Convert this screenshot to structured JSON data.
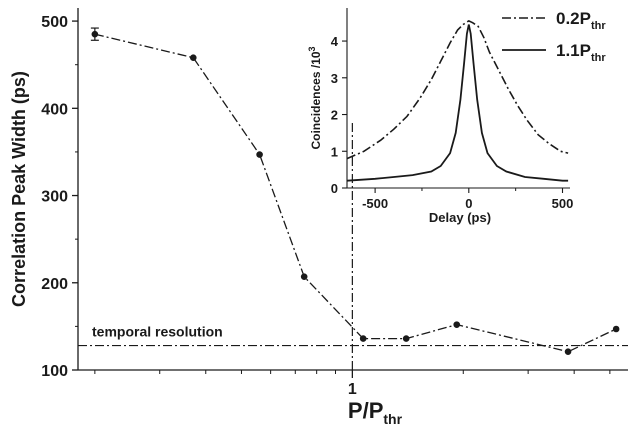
{
  "chart_data": [
    {
      "type": "line",
      "xlabel_main": "P/P",
      "xlabel_sub": "thr",
      "ylabel": "Correlation Peak  Width (ps)",
      "xscale": "log",
      "xlim": [
        0.18,
        5.6
      ],
      "ylim": [
        100,
        515
      ],
      "yticks": [
        100,
        200,
        300,
        400,
        500
      ],
      "xtick_labels": [
        "1"
      ],
      "grid": false,
      "series": [
        {
          "style": "dash-dot",
          "markers": "circle",
          "x": [
            0.2,
            0.37,
            0.56,
            0.74,
            1.07,
            1.4,
            1.92,
            3.85,
            5.2
          ],
          "y": [
            485,
            458,
            347,
            207,
            136,
            136,
            152,
            121,
            147
          ],
          "error": [
            7,
            0,
            0,
            0,
            0,
            0,
            0,
            0,
            0
          ]
        }
      ],
      "reference_lines": {
        "horizontal": {
          "y": 128,
          "label": "temporal resolution"
        },
        "vertical": {
          "x": 1
        }
      }
    },
    {
      "type": "line",
      "xlabel": "Delay (ps)",
      "ylabel": "Coincidences /10",
      "ylabel_superscript": "3",
      "xlim": [
        -650,
        540
      ],
      "ylim": [
        0,
        4.9
      ],
      "xticks": [
        -500,
        0,
        500
      ],
      "yticks": [
        0,
        1,
        2,
        3,
        4
      ],
      "legend": "top-right",
      "series": [
        {
          "name": "0.2P",
          "name_sub": "thr",
          "style": "dash-dot",
          "x": [
            -650,
            -560,
            -470,
            -400,
            -330,
            -260,
            -200,
            -150,
            -100,
            -60,
            -30,
            -10,
            0,
            20,
            50,
            80,
            110,
            160,
            210,
            260,
            310,
            370,
            430,
            490,
            530
          ],
          "y": [
            0.8,
            1.0,
            1.3,
            1.6,
            1.95,
            2.45,
            2.95,
            3.45,
            3.95,
            4.3,
            4.45,
            4.52,
            4.55,
            4.5,
            4.4,
            4.1,
            3.7,
            3.2,
            2.7,
            2.25,
            1.85,
            1.45,
            1.2,
            1.0,
            0.95
          ]
        },
        {
          "name": "1.1P",
          "name_sub": "thr",
          "style": "solid",
          "x": [
            -650,
            -500,
            -400,
            -300,
            -200,
            -150,
            -100,
            -70,
            -45,
            -25,
            -10,
            0,
            10,
            25,
            45,
            70,
            100,
            150,
            200,
            300,
            400,
            500,
            530
          ],
          "y": [
            0.2,
            0.25,
            0.3,
            0.35,
            0.45,
            0.6,
            0.95,
            1.5,
            2.4,
            3.4,
            4.2,
            4.45,
            4.2,
            3.4,
            2.4,
            1.5,
            0.95,
            0.6,
            0.45,
            0.3,
            0.25,
            0.2,
            0.2
          ]
        }
      ]
    }
  ]
}
